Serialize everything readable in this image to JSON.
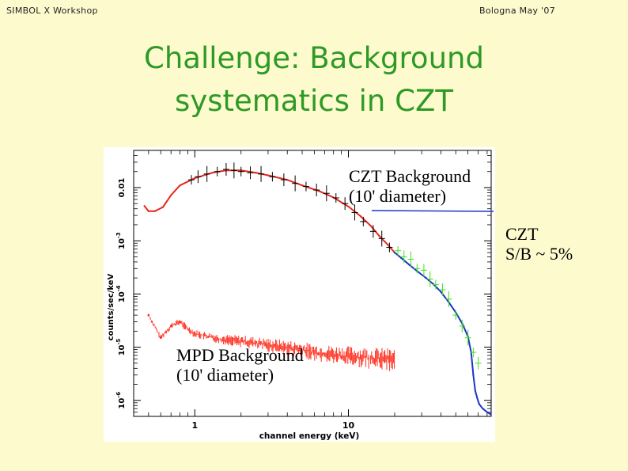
{
  "header": {
    "left": "SIMBOL X Workshop",
    "right": "Bologna May '07"
  },
  "title": {
    "line1": "Challenge: Background",
    "line2": "systematics in CZT"
  },
  "annotations": {
    "czt_background_line1": "CZT Background",
    "czt_background_line2": "(10' diameter)",
    "czt_sb_line1": "CZT",
    "czt_sb_line2": "S/B ~ 5%",
    "mpd_background_line1": "MPD Background",
    "mpd_background_line2": "(10' diameter)"
  },
  "colors": {
    "background": "#fdfbce",
    "title": "#2e9a26",
    "czt_model": "#e8261c",
    "mpd_data": "#ff2a1a",
    "hard_data": "#44e01c",
    "hard_model": "#1b35c9",
    "czt_data": "#000000"
  },
  "chart_data": {
    "type": "line",
    "xlabel": "channel energy (keV)",
    "ylabel": "counts/sec/keV",
    "xscale": "log",
    "yscale": "log",
    "xlim": [
      0.4,
      85
    ],
    "ylim": [
      5e-07,
      0.05
    ],
    "x_ticks": [
      {
        "value": 1,
        "label": "1"
      },
      {
        "value": 10,
        "label": "10"
      }
    ],
    "y_ticks": [
      {
        "value": 0.01,
        "label": "0.01"
      },
      {
        "value": 0.001,
        "label": "10^-3"
      },
      {
        "value": 0.0001,
        "label": "10^-4"
      },
      {
        "value": 1e-05,
        "label": "10^-5"
      },
      {
        "value": 1e-06,
        "label": "10^-6"
      }
    ],
    "series": [
      {
        "style": "line",
        "color": "#e8261c",
        "x": [
          0.47,
          0.5,
          0.55,
          0.62,
          0.7,
          0.8,
          1.0,
          1.3,
          1.6,
          2.0,
          2.5,
          3.0,
          4.0,
          5.0,
          6.5,
          8.0,
          10.0,
          12.0,
          14.0,
          16.0,
          18.0,
          20.0
        ],
        "y": [
          0.0045,
          0.0036,
          0.0036,
          0.0043,
          0.0072,
          0.011,
          0.015,
          0.019,
          0.021,
          0.021,
          0.019,
          0.017,
          0.014,
          0.011,
          0.0085,
          0.0065,
          0.0044,
          0.0029,
          0.0019,
          0.0012,
          0.00085,
          0.0006
        ]
      },
      {
        "style": "errorbars",
        "color": "#000000",
        "x": [
          0.95,
          1.05,
          1.2,
          1.4,
          1.6,
          1.8,
          2.0,
          2.3,
          2.7,
          3.2,
          3.8,
          4.5,
          5.3,
          6.2,
          7.2,
          8.3,
          9.5,
          11.0,
          12.5,
          14.5,
          16.5,
          18.5
        ],
        "y": [
          0.014,
          0.016,
          0.018,
          0.02,
          0.022,
          0.021,
          0.02,
          0.019,
          0.018,
          0.016,
          0.014,
          0.012,
          0.0105,
          0.009,
          0.0078,
          0.0064,
          0.005,
          0.0034,
          0.0023,
          0.0015,
          0.0011,
          0.00075
        ]
      },
      {
        "style": "line",
        "color": "#1b35c9",
        "x": [
          20,
          22,
          25,
          28,
          32,
          36,
          40,
          45,
          50,
          55,
          60,
          63,
          65,
          67,
          69,
          71,
          75,
          80,
          84
        ],
        "y": [
          0.0006,
          0.00048,
          0.00035,
          0.00027,
          0.0002,
          0.00015,
          0.00011,
          7e-05,
          4.5e-05,
          2.8e-05,
          1.6e-05,
          8e-06,
          3e-06,
          1.5e-06,
          1.1e-06,
          8.5e-07,
          7e-07,
          6e-07,
          5.5e-07
        ]
      },
      {
        "style": "errorbars",
        "color": "#44e01c",
        "x": [
          21,
          23,
          25.5,
          28,
          31,
          34,
          37,
          41,
          45,
          50,
          55,
          60,
          65,
          70
        ],
        "y": [
          0.00065,
          0.0005,
          0.00045,
          0.0003,
          0.00028,
          0.00019,
          0.00015,
          0.00012,
          8e-05,
          4e-05,
          2.5e-05,
          1.5e-05,
          8e-06,
          5e-06
        ]
      },
      {
        "style": "band",
        "color": "#ff2a1a",
        "x": [
          0.5,
          0.6,
          0.7,
          0.8,
          0.9,
          1.0,
          1.2,
          1.5,
          2.0,
          3.0,
          4.0,
          5.0,
          6.0,
          8.0,
          10.0,
          13.0,
          16.0,
          20.0
        ],
        "y": [
          4e-05,
          1.5e-05,
          2.5e-05,
          3e-05,
          2.2e-05,
          1.8e-05,
          1.6e-05,
          1.4e-05,
          1.3e-05,
          1.1e-05,
          9.8e-06,
          8.8e-06,
          8e-06,
          7.2e-06,
          6.8e-06,
          6.4e-06,
          6e-06,
          5.8e-06
        ]
      }
    ]
  }
}
